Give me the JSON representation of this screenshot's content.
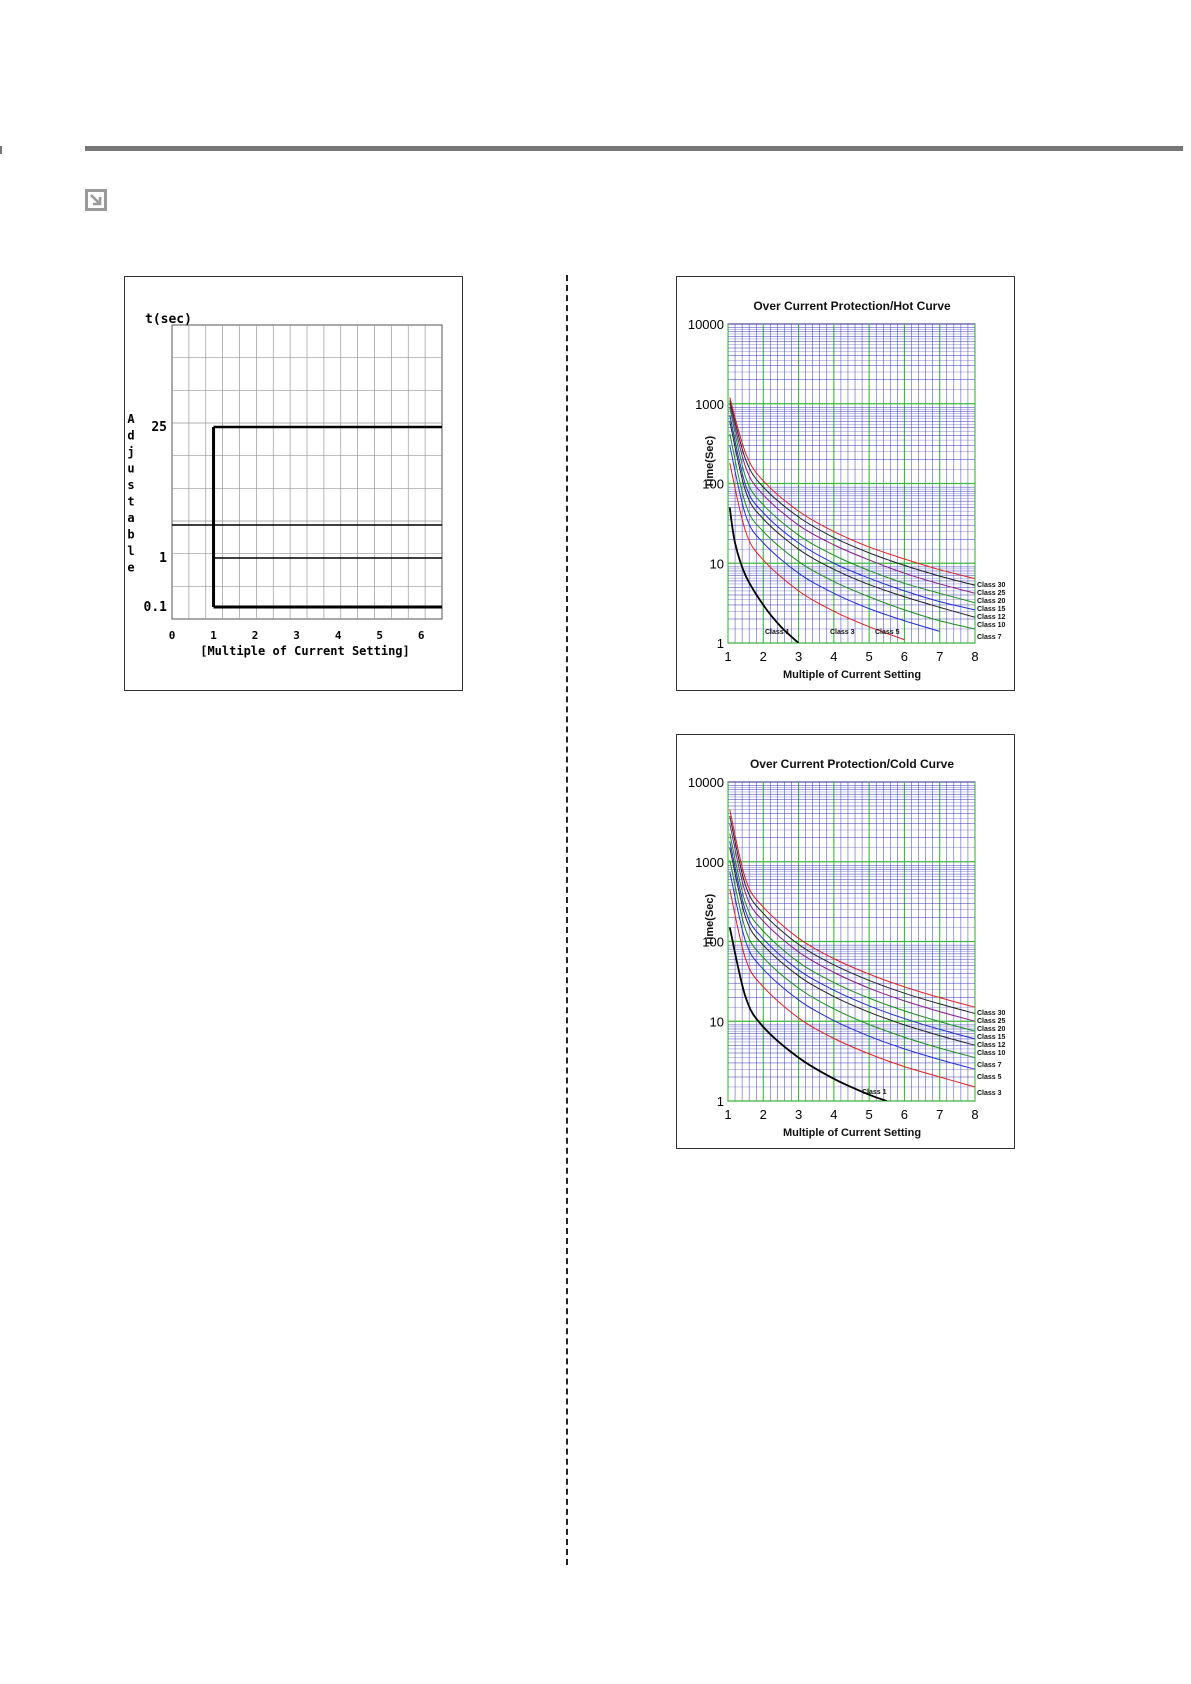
{
  "colors": {
    "rule": "#777777",
    "grid_blue": "#3a3ab8",
    "grid_green": "#3cb83c",
    "class_colors": {
      "Class 1": "#000000",
      "Class 3": "#e02020",
      "Class 5": "#2030d0",
      "Class 7": "#1b8f1b",
      "Class 10": "#222222",
      "Class 12": "#2030d0",
      "Class 15": "#1b8f1b",
      "Class 20": "#8a1b8a",
      "Class 25": "#222222",
      "Class 30": "#e02020"
    }
  },
  "icons": {
    "section_marker": "arrow-down-right-icon"
  },
  "chart_data": [
    {
      "type": "line",
      "title": "",
      "ylabel_top": "t(sec)",
      "ylabel_side": "Adjustable",
      "xlabel": "[Multiple of Current Setting]",
      "x_ticks": [
        "0",
        "1",
        "2",
        "3",
        "4",
        "5",
        "6"
      ],
      "y_tick_labels": [
        "25",
        "1",
        "0.1"
      ],
      "xlim": [
        0,
        6.5
      ],
      "grid": true,
      "series": [
        {
          "points": [
            [
              1,
              25
            ],
            [
              1,
              0.1
            ]
          ]
        },
        {
          "points": [
            [
              1,
              25
            ],
            [
              6.5,
              25
            ]
          ]
        },
        {
          "points": [
            [
              1,
              1
            ],
            [
              6.5,
              1
            ]
          ]
        },
        {
          "points": [
            [
              1,
              0.1
            ],
            [
              6.5,
              0.1
            ]
          ]
        }
      ]
    },
    {
      "type": "line",
      "title": "Over Current Protection/Hot Curve",
      "xlabel": "Multiple of Current Setting",
      "ylabel": "Time(Sec)",
      "x_ticks": [
        "1",
        "2",
        "3",
        "4",
        "5",
        "6",
        "7",
        "8"
      ],
      "y_ticks": [
        "1",
        "10",
        "100",
        "1000",
        "10000"
      ],
      "xlim": [
        1,
        8
      ],
      "ylim": [
        1,
        10000
      ],
      "yscale": "log",
      "grid": true,
      "series": [
        {
          "name": "Class 1",
          "class": 1,
          "x": [
            1.05,
            1.2,
            1.5,
            2,
            2.5,
            3
          ],
          "y": [
            50,
            18,
            7.0,
            3.0,
            1.6,
            1.0
          ]
        },
        {
          "name": "Class 3",
          "class": 3,
          "x": [
            1.05,
            1.5,
            2,
            3,
            4,
            5,
            6
          ],
          "y": [
            180,
            25,
            11,
            4.5,
            2.5,
            1.6,
            1.1
          ]
        },
        {
          "name": "Class 5",
          "class": 5,
          "x": [
            1.05,
            1.5,
            2,
            3,
            4,
            5,
            6,
            7
          ],
          "y": [
            300,
            40,
            18,
            7.5,
            4.2,
            2.7,
            1.9,
            1.4
          ]
        },
        {
          "name": "Class 7",
          "class": 7,
          "x": [
            1.05,
            1.5,
            2,
            3,
            4,
            5,
            6,
            7,
            8
          ],
          "y": [
            420,
            55,
            25,
            10.5,
            5.9,
            3.8,
            2.6,
            1.9,
            1.5
          ]
        },
        {
          "name": "Class 10",
          "class": 10,
          "x": [
            1.05,
            1.5,
            2,
            3,
            4,
            5,
            6,
            7,
            8
          ],
          "y": [
            600,
            80,
            36,
            15,
            8.4,
            5.4,
            3.8,
            2.8,
            2.1
          ]
        },
        {
          "name": "Class 12",
          "class": 12,
          "x": [
            1.05,
            1.5,
            2,
            3,
            4,
            5,
            6,
            7,
            8
          ],
          "y": [
            720,
            95,
            43,
            18,
            10,
            6.5,
            4.5,
            3.3,
            2.6
          ]
        },
        {
          "name": "Class 15",
          "class": 15,
          "x": [
            1.05,
            1.5,
            2,
            3,
            4,
            5,
            6,
            7,
            8
          ],
          "y": [
            900,
            120,
            54,
            22.5,
            12.6,
            8.1,
            5.6,
            4.2,
            3.2
          ]
        },
        {
          "name": "Class 20",
          "class": 20,
          "x": [
            1.05,
            1.5,
            2,
            3,
            4,
            5,
            6,
            7,
            8
          ],
          "y": [
            1000,
            160,
            72,
            30,
            17,
            11,
            7.5,
            5.5,
            4.2
          ]
        },
        {
          "name": "Class 25",
          "class": 25,
          "x": [
            1.05,
            1.5,
            2,
            3,
            4,
            5,
            6,
            7,
            8
          ],
          "y": [
            1100,
            200,
            90,
            38,
            21,
            13.5,
            9.4,
            6.9,
            5.3
          ]
        },
        {
          "name": "Class 30",
          "class": 30,
          "x": [
            1.05,
            1.5,
            2,
            3,
            4,
            5,
            6,
            7,
            8
          ],
          "y": [
            1200,
            240,
            108,
            45,
            25,
            16,
            11.3,
            8.3,
            6.4
          ]
        }
      ]
    },
    {
      "type": "line",
      "title": "Over Current Protection/Cold Curve",
      "xlabel": "Multiple of Current Setting",
      "ylabel": "Time(Sec)",
      "x_ticks": [
        "1",
        "2",
        "3",
        "4",
        "5",
        "6",
        "7",
        "8"
      ],
      "y_ticks": [
        "1",
        "10",
        "100",
        "1000",
        "10000"
      ],
      "xlim": [
        1,
        8
      ],
      "ylim": [
        1,
        10000
      ],
      "yscale": "log",
      "grid": true,
      "series": [
        {
          "name": "Class 1",
          "class": 1,
          "x": [
            1.05,
            1.5,
            2,
            3,
            4,
            5,
            5.5
          ],
          "y": [
            150,
            20,
            8.5,
            3.5,
            1.9,
            1.2,
            1.0
          ]
        },
        {
          "name": "Class 3",
          "class": 3,
          "x": [
            1.05,
            1.5,
            2,
            3,
            4,
            5,
            6,
            7,
            8
          ],
          "y": [
            450,
            60,
            27,
            11,
            6.1,
            3.9,
            2.7,
            2.0,
            1.5
          ]
        },
        {
          "name": "Class 5",
          "class": 5,
          "x": [
            1.05,
            1.5,
            2,
            3,
            4,
            5,
            6,
            7,
            8
          ],
          "y": [
            750,
            100,
            45,
            18.5,
            10.2,
            6.5,
            4.5,
            3.3,
            2.5
          ]
        },
        {
          "name": "Class 7",
          "class": 7,
          "x": [
            1.05,
            1.5,
            2,
            3,
            4,
            5,
            6,
            7,
            8
          ],
          "y": [
            1050,
            140,
            63,
            26,
            14.3,
            9.1,
            6.3,
            4.6,
            3.5
          ]
        },
        {
          "name": "Class 10",
          "class": 10,
          "x": [
            1.05,
            1.5,
            2,
            3,
            4,
            5,
            6,
            7,
            8
          ],
          "y": [
            1500,
            200,
            90,
            37,
            20.4,
            13,
            9,
            6.6,
            5.0
          ]
        },
        {
          "name": "Class 12",
          "class": 12,
          "x": [
            1.05,
            1.5,
            2,
            3,
            4,
            5,
            6,
            7,
            8
          ],
          "y": [
            1800,
            240,
            108,
            44,
            24.5,
            15.6,
            10.8,
            7.9,
            6.0
          ]
        },
        {
          "name": "Class 15",
          "class": 15,
          "x": [
            1.05,
            1.5,
            2,
            3,
            4,
            5,
            6,
            7,
            8
          ],
          "y": [
            2250,
            300,
            135,
            55,
            30.6,
            19.5,
            13.5,
            9.9,
            7.5
          ]
        },
        {
          "name": "Class 20",
          "class": 20,
          "x": [
            1.05,
            1.5,
            2,
            3,
            4,
            5,
            6,
            7,
            8
          ],
          "y": [
            3000,
            400,
            180,
            74,
            41,
            26,
            18,
            13.2,
            10
          ]
        },
        {
          "name": "Class 25",
          "class": 25,
          "x": [
            1.05,
            1.5,
            2,
            3,
            4,
            5,
            6,
            7,
            8
          ],
          "y": [
            3750,
            500,
            225,
            92,
            51,
            32.5,
            22.5,
            16.5,
            12.5
          ]
        },
        {
          "name": "Class 30",
          "class": 30,
          "x": [
            1.05,
            1.5,
            2,
            3,
            4,
            5,
            6,
            7,
            8
          ],
          "y": [
            4500,
            600,
            270,
            110,
            61,
            39,
            27,
            19.8,
            15
          ]
        }
      ]
    }
  ]
}
